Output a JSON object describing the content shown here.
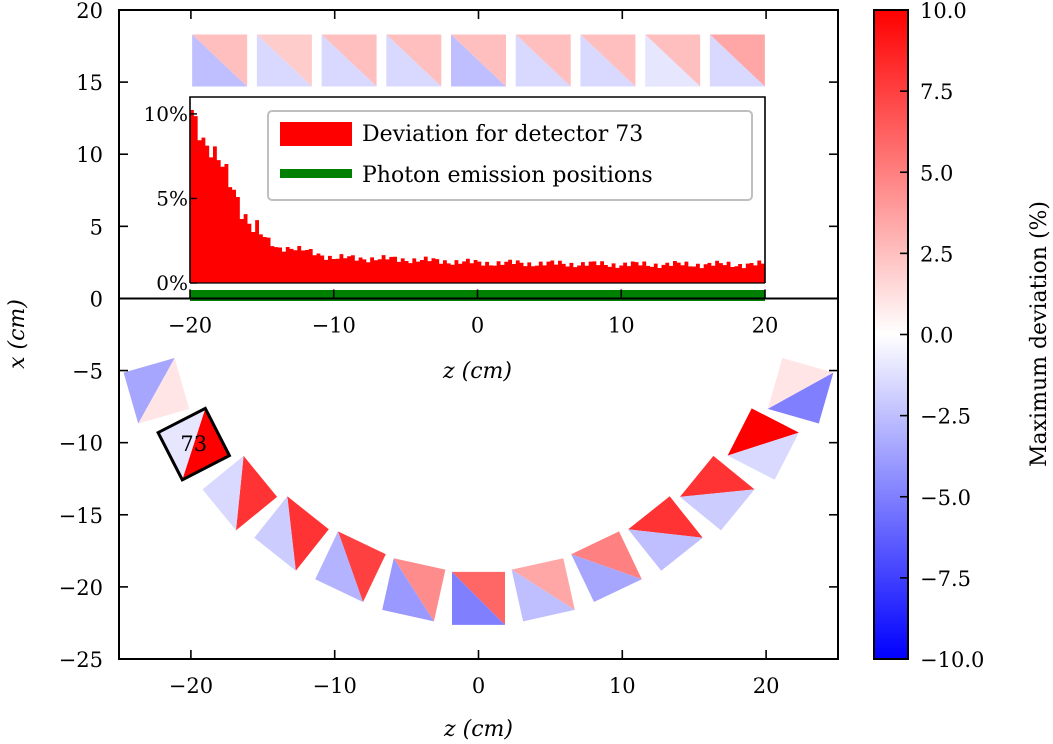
{
  "chart_data": [
    {
      "type": "heatmap",
      "description_role": "main detector map",
      "xlabel": "z (cm)",
      "ylabel": "x (cm)",
      "xlim": [
        -25,
        25
      ],
      "ylim": [
        -25,
        20
      ],
      "x_ticks": [
        -20,
        -10,
        0,
        10,
        20
      ],
      "y_ticks": [
        -25,
        -20,
        -15,
        -10,
        -5,
        0,
        5,
        10,
        15,
        20
      ],
      "highlighted_detector": "73",
      "top_row_detectors": [
        {
          "z": -18.0,
          "x": 16.5,
          "upper": 2.5,
          "lower": -2.5
        },
        {
          "z": -13.5,
          "x": 16.5,
          "upper": 2.0,
          "lower": -1.5
        },
        {
          "z": -9.0,
          "x": 16.5,
          "upper": 2.5,
          "lower": -1.5
        },
        {
          "z": -4.5,
          "x": 16.5,
          "upper": 2.5,
          "lower": -1.5
        },
        {
          "z": 0.0,
          "x": 16.5,
          "upper": 2.5,
          "lower": -2.5
        },
        {
          "z": 4.5,
          "x": 16.5,
          "upper": 2.5,
          "lower": -1.5
        },
        {
          "z": 9.0,
          "x": 16.5,
          "upper": 2.5,
          "lower": -1.5
        },
        {
          "z": 13.5,
          "x": 16.5,
          "upper": 2.5,
          "lower": -1.0
        },
        {
          "z": 18.0,
          "x": 16.5,
          "upper": 3.5,
          "lower": -1.5
        }
      ],
      "ring_detectors": [
        {
          "z": -22.4,
          "x": -6.4,
          "outer": 1.0,
          "inner": -3.5
        },
        {
          "z": -19.8,
          "x": -10.1,
          "outer": 10.0,
          "inner": -1.0,
          "label": "73"
        },
        {
          "z": -16.6,
          "x": -13.5,
          "outer": 8.0,
          "inner": -1.5
        },
        {
          "z": -13.0,
          "x": -16.3,
          "outer": 8.0,
          "inner": -2.0
        },
        {
          "z": -8.9,
          "x": -18.6,
          "outer": 7.5,
          "inner": -3.0
        },
        {
          "z": -4.5,
          "x": -20.2,
          "outer": 4.5,
          "inner": -4.0
        },
        {
          "z": 0.0,
          "x": -20.8,
          "outer": 6.0,
          "inner": -5.0
        },
        {
          "z": 4.5,
          "x": -20.2,
          "outer": 3.5,
          "inner": -2.5
        },
        {
          "z": 8.9,
          "x": -18.6,
          "outer": 5.0,
          "inner": -3.5
        },
        {
          "z": 13.0,
          "x": -16.3,
          "outer": 8.0,
          "inner": -2.5
        },
        {
          "z": 16.6,
          "x": -13.5,
          "outer": 8.0,
          "inner": -2.0
        },
        {
          "z": 19.8,
          "x": -10.1,
          "outer": 10.0,
          "inner": -1.5
        },
        {
          "z": 22.4,
          "x": -6.4,
          "outer": 1.0,
          "inner": -5.0
        }
      ]
    },
    {
      "type": "bar",
      "description_role": "inset histogram",
      "xlabel": "z (cm)",
      "xlim": [
        -20,
        20
      ],
      "x_ticks": [
        -20,
        -10,
        0,
        10,
        20
      ],
      "y_ticks": [
        "0%",
        "5%",
        "10%"
      ],
      "ylim": [
        0,
        11
      ],
      "legend": [
        {
          "label": "Deviation for detector 73",
          "color": "#ff0000"
        },
        {
          "label": "Photon emission positions",
          "color": "#008000"
        }
      ],
      "series_profile": [
        {
          "z": -20,
          "value": 10.5
        },
        {
          "z": -19,
          "value": 8.5
        },
        {
          "z": -18,
          "value": 7.2
        },
        {
          "z": -17,
          "value": 5.6
        },
        {
          "z": -16,
          "value": 3.8
        },
        {
          "z": -15,
          "value": 2.8
        },
        {
          "z": -14,
          "value": 2.1
        },
        {
          "z": -13,
          "value": 2.1
        },
        {
          "z": -12,
          "value": 1.9
        },
        {
          "z": -10,
          "value": 1.5
        },
        {
          "z": -5,
          "value": 1.4
        },
        {
          "z": 0,
          "value": 1.2
        },
        {
          "z": 10,
          "value": 1.1
        },
        {
          "z": 20,
          "value": 1.1
        }
      ],
      "emission_range": [
        -20,
        20
      ]
    },
    {
      "type": "heatmap",
      "description_role": "colorbar",
      "label": "Maximum deviation (%)",
      "range": [
        -10,
        10
      ],
      "ticks": [
        "10.0",
        "7.5",
        "5.0",
        "2.5",
        "0.0",
        "−2.5",
        "−5.0",
        "−7.5",
        "−10.0"
      ],
      "colormap": "bwr",
      "colors": {
        "low": "#0000ff",
        "mid": "#ffffff",
        "high": "#ff0000"
      }
    }
  ],
  "labels": {
    "main_x_label": "z (cm)",
    "main_y_label": "x (cm)",
    "inset_x_label": "z (cm)",
    "colorbar_label": "Maximum deviation (%)"
  }
}
